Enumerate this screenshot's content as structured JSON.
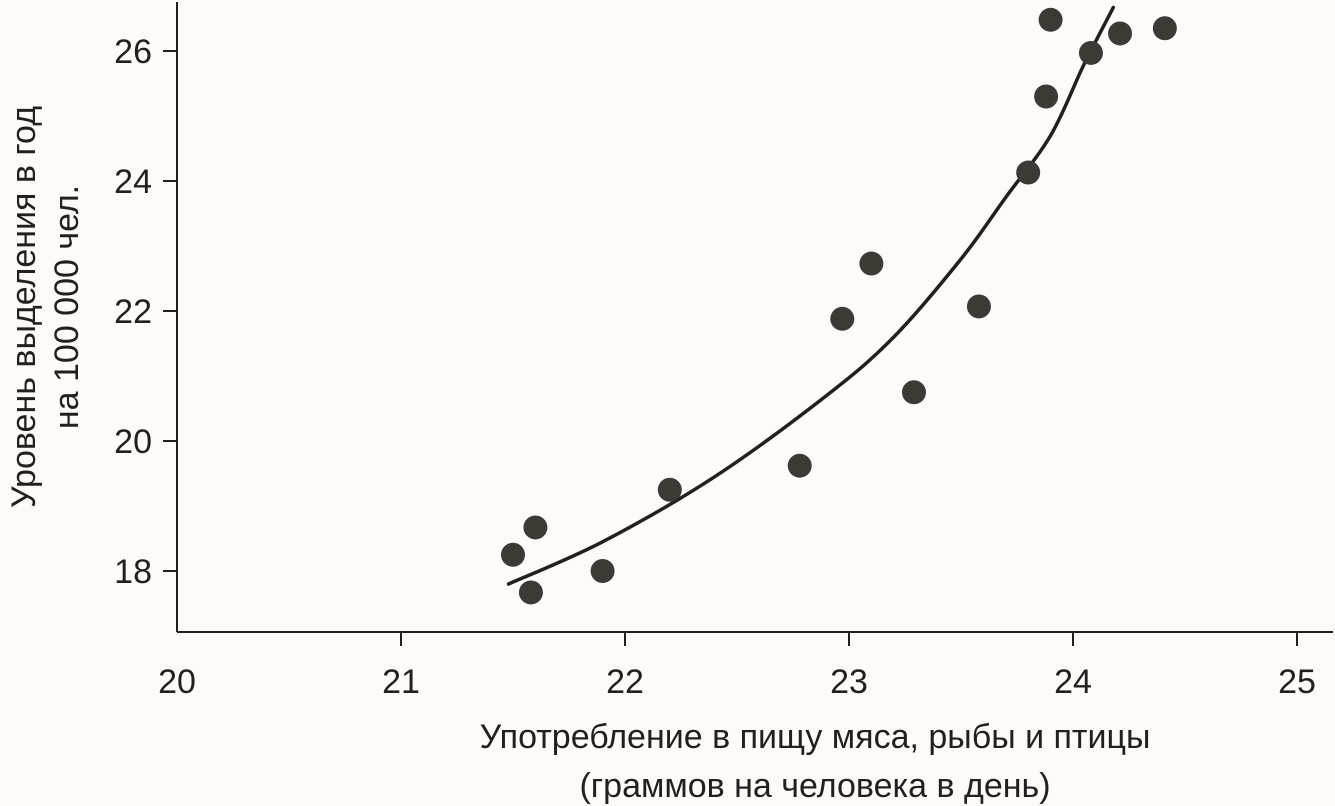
{
  "chart_data": {
    "type": "scatter",
    "title": "",
    "xlabel_lines": [
      "Употребление в пищу мяса, рыбы и птицы",
      "(граммов на человека в день)"
    ],
    "ylabel_lines": [
      "Уровень выделения в год",
      "на 100 000 чел."
    ],
    "xlim": [
      20,
      25
    ],
    "ylim": [
      17,
      26.8
    ],
    "xticks": [
      20,
      21,
      22,
      23,
      24,
      25
    ],
    "yticks": [
      18,
      20,
      22,
      24,
      26
    ],
    "grid": false,
    "colors": {
      "axis": "#231f20",
      "points": "#3d3935",
      "curve": "#231f20",
      "background": "#fdfbf7"
    },
    "points": [
      {
        "x": 21.5,
        "y": 18.25
      },
      {
        "x": 21.6,
        "y": 18.67
      },
      {
        "x": 21.58,
        "y": 17.67
      },
      {
        "x": 21.9,
        "y": 18.0
      },
      {
        "x": 22.2,
        "y": 19.25
      },
      {
        "x": 22.78,
        "y": 19.62
      },
      {
        "x": 22.97,
        "y": 21.88
      },
      {
        "x": 23.1,
        "y": 22.73
      },
      {
        "x": 23.29,
        "y": 20.75
      },
      {
        "x": 23.58,
        "y": 22.07
      },
      {
        "x": 23.8,
        "y": 24.13
      },
      {
        "x": 23.88,
        "y": 25.3
      },
      {
        "x": 23.9,
        "y": 26.48
      },
      {
        "x": 24.08,
        "y": 25.97
      },
      {
        "x": 24.21,
        "y": 26.27
      },
      {
        "x": 24.41,
        "y": 26.35
      }
    ],
    "trend": {
      "x": [
        21.48,
        21.9,
        22.4,
        22.9,
        23.2,
        23.5,
        23.7,
        23.9,
        24.05,
        24.18
      ],
      "y": [
        17.8,
        18.45,
        19.45,
        20.7,
        21.6,
        22.8,
        23.75,
        24.7,
        25.8,
        26.67
      ]
    }
  }
}
